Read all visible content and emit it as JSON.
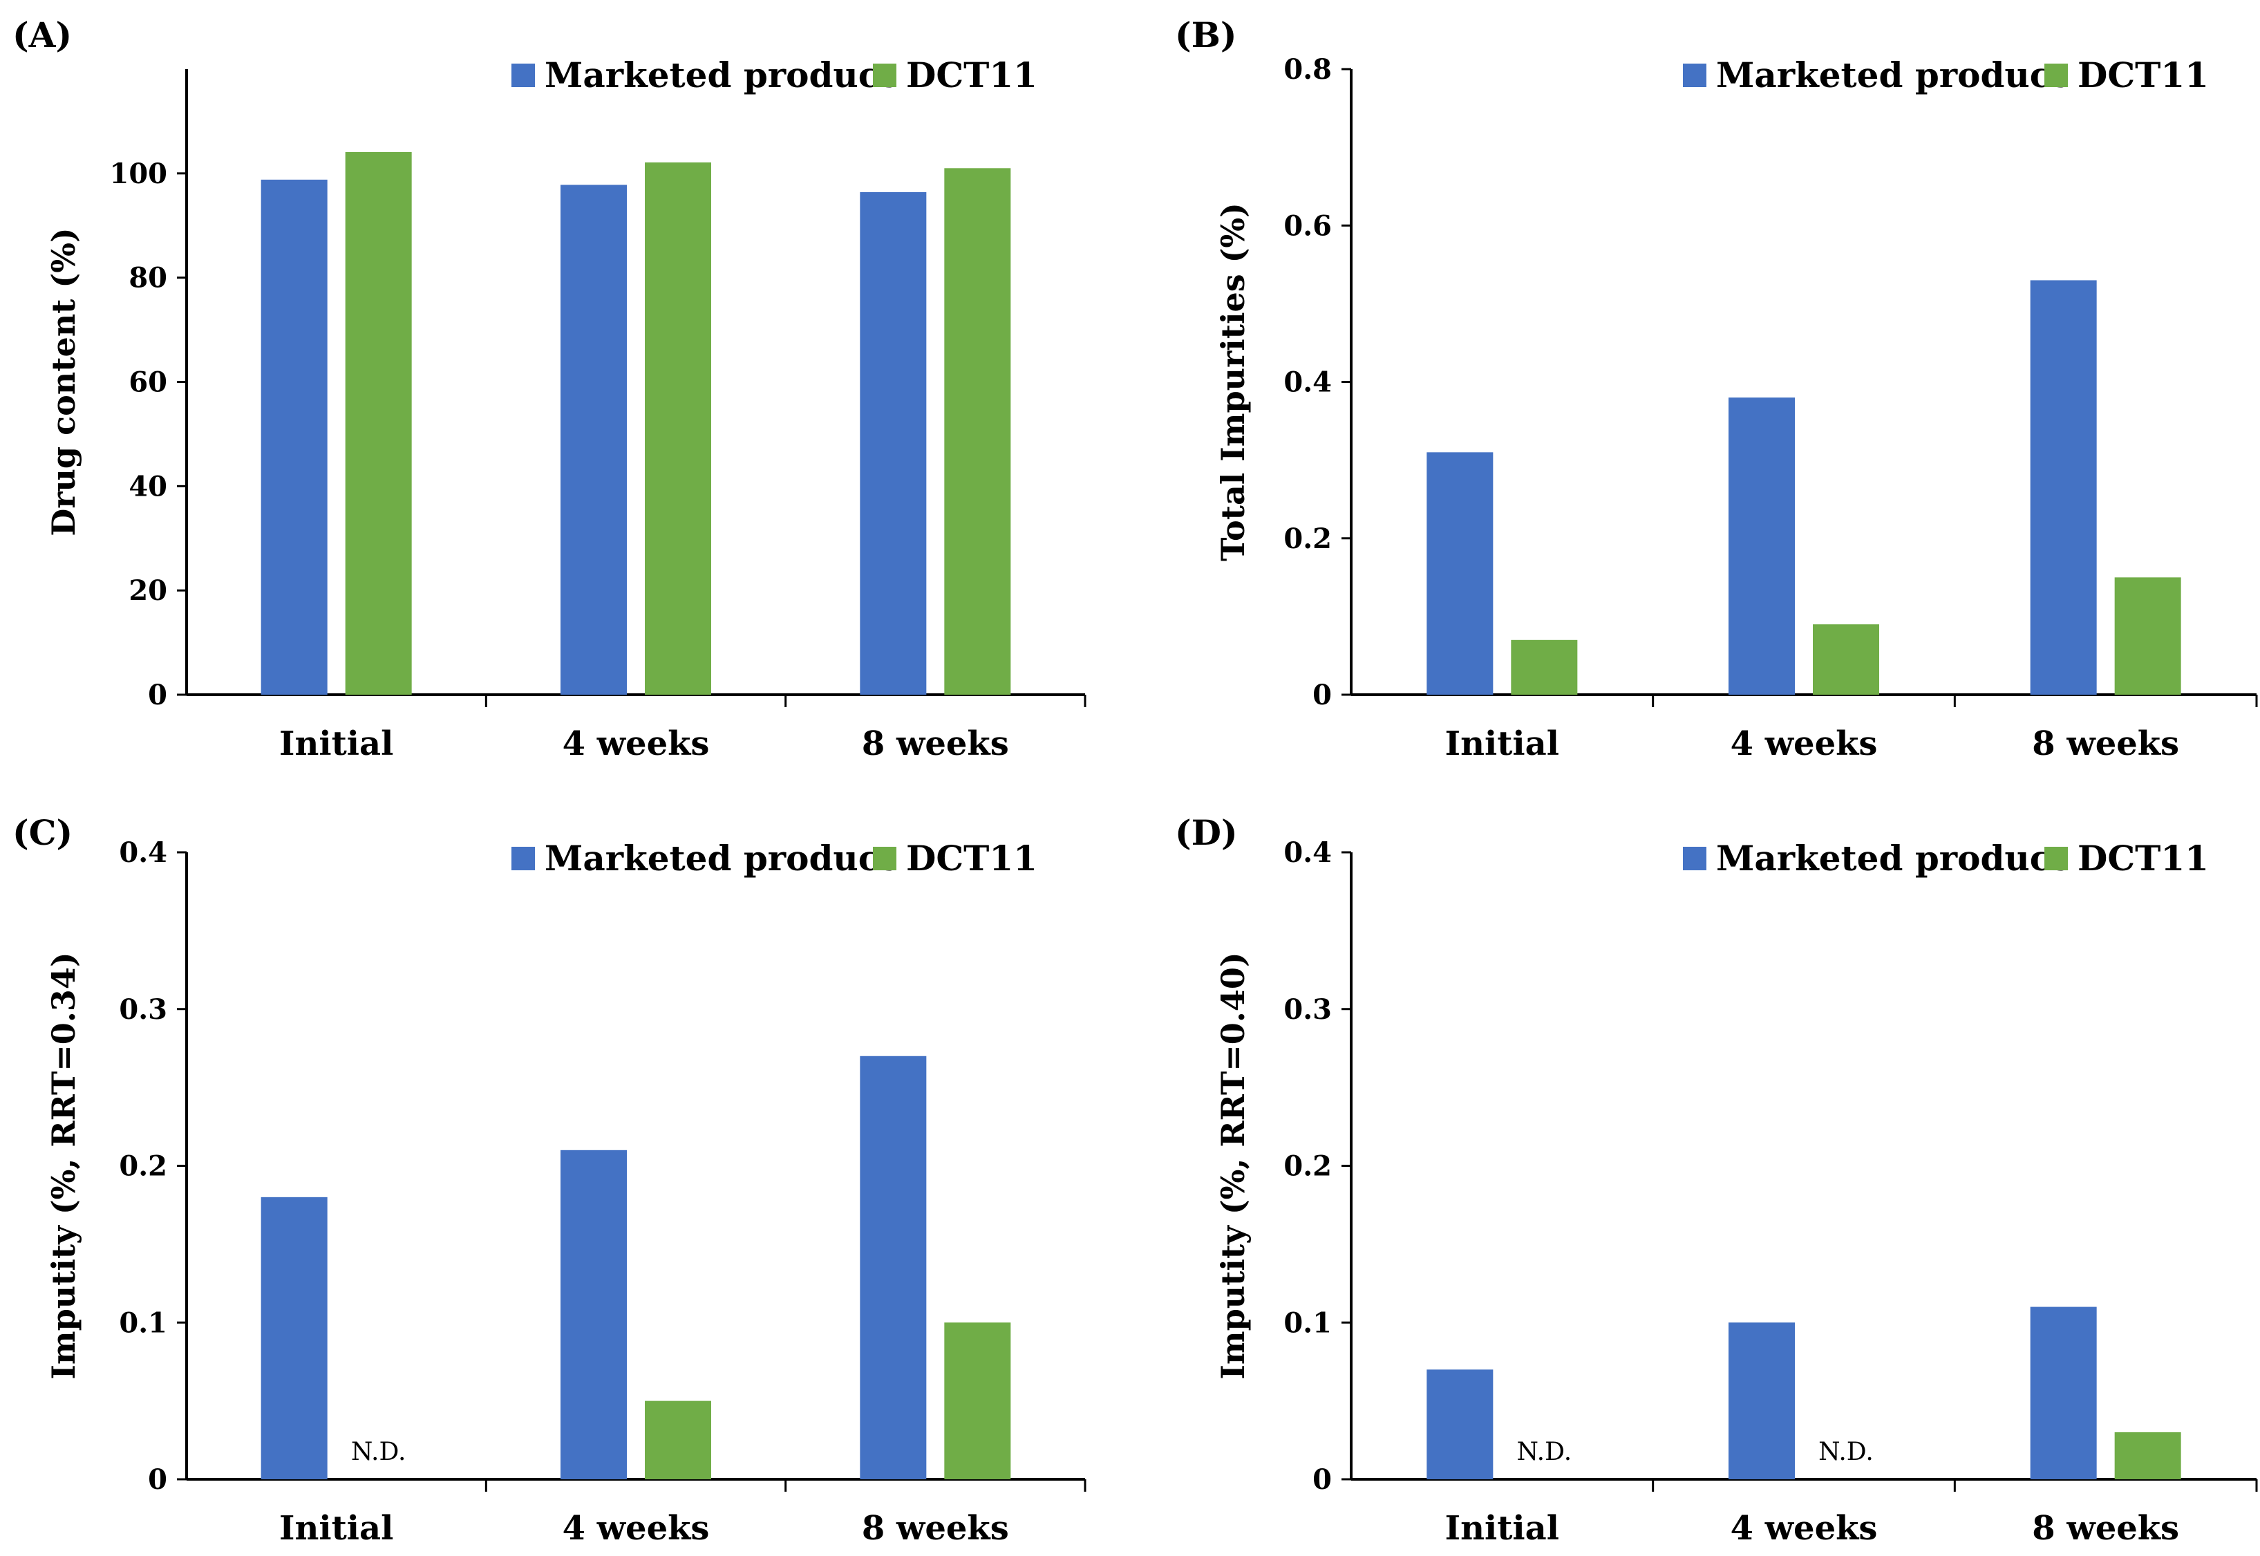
{
  "figure": {
    "categories": [
      "Initial",
      "4 weeks",
      "8 weeks"
    ],
    "series_names": [
      "Marketed product",
      "DCT11"
    ],
    "colors": {
      "Marketed product": "#4472C4",
      "DCT11": "#70AD47"
    },
    "nd_text": "N.D."
  },
  "chart_data": [
    {
      "panel": "(A)",
      "type": "bar",
      "categories": [
        "Initial",
        "4 weeks",
        "8 weeks"
      ],
      "series": [
        {
          "name": "Marketed product",
          "values": [
            98.8,
            97.8,
            96.4
          ]
        },
        {
          "name": "DCT11",
          "values": [
            104.1,
            102.1,
            101.0
          ]
        }
      ],
      "ylabel": "Drug content (%)",
      "ylim": [
        0,
        120
      ],
      "yticks": [
        0,
        20,
        40,
        60,
        80,
        100
      ],
      "ytick_labels": [
        "0",
        "20",
        "40",
        "60",
        "80",
        "100"
      ],
      "legend": "top-right"
    },
    {
      "panel": "(B)",
      "type": "bar",
      "categories": [
        "Initial",
        "4 weeks",
        "8 weeks"
      ],
      "series": [
        {
          "name": "Marketed product",
          "values": [
            0.31,
            0.38,
            0.53
          ]
        },
        {
          "name": "DCT11",
          "values": [
            0.07,
            0.09,
            0.15
          ]
        }
      ],
      "ylabel": "Total Impurities (%)",
      "ylim": [
        0,
        0.8
      ],
      "yticks": [
        0,
        0.2,
        0.4,
        0.6,
        0.8
      ],
      "ytick_labels": [
        "0",
        "0.2",
        "0.4",
        "0.6",
        "0.8"
      ],
      "legend": "top-right"
    },
    {
      "panel": "(C)",
      "type": "bar",
      "categories": [
        "Initial",
        "4 weeks",
        "8 weeks"
      ],
      "series": [
        {
          "name": "Marketed product",
          "values": [
            0.18,
            0.21,
            0.27
          ]
        },
        {
          "name": "DCT11",
          "values": [
            null,
            0.05,
            0.1
          ]
        }
      ],
      "nd_labels": [
        "DCT11|Initial"
      ],
      "ylabel": "Imputity (%, RRT=0.34)",
      "ylim": [
        0,
        0.4
      ],
      "yticks": [
        0,
        0.1,
        0.2,
        0.3,
        0.4
      ],
      "ytick_labels": [
        "0",
        "0.1",
        "0.2",
        "0.3",
        "0.4"
      ],
      "legend": "top-right"
    },
    {
      "panel": "(D)",
      "type": "bar",
      "categories": [
        "Initial",
        "4 weeks",
        "8 weeks"
      ],
      "series": [
        {
          "name": "Marketed product",
          "values": [
            0.07,
            0.1,
            0.11
          ]
        },
        {
          "name": "DCT11",
          "values": [
            null,
            null,
            0.03
          ]
        }
      ],
      "nd_labels": [
        "DCT11|Initial",
        "DCT11|4 weeks"
      ],
      "ylabel": "Imputity (%, RRT=0.40)",
      "ylim": [
        0,
        0.4
      ],
      "yticks": [
        0,
        0.1,
        0.2,
        0.3,
        0.4
      ],
      "ytick_labels": [
        "0",
        "0.1",
        "0.2",
        "0.3",
        "0.4"
      ],
      "legend": "top-right"
    }
  ]
}
